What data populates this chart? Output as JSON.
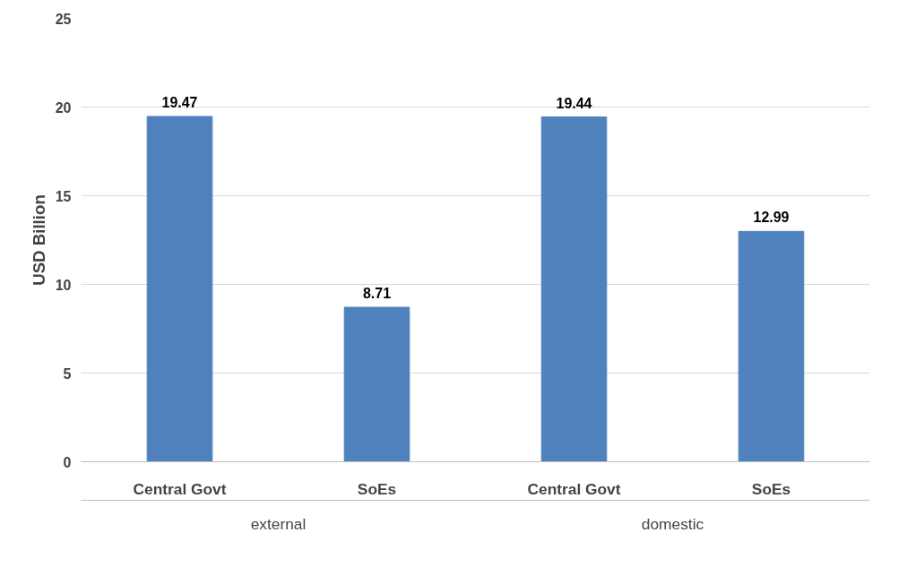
{
  "chart_data": {
    "type": "bar",
    "ylabel": "USD Billion",
    "categories": [
      "Central Govt",
      "SoEs",
      "Central Govt",
      "SoEs"
    ],
    "values": [
      19.47,
      8.71,
      19.44,
      12.99
    ],
    "color": "#4f81bd",
    "annotations": [
      "external",
      "domestic"
    ],
    "ylim": [
      0,
      25
    ],
    "yticks": [
      0,
      5,
      10,
      15,
      20,
      25
    ],
    "grid": "y",
    "data_labels": true
  }
}
